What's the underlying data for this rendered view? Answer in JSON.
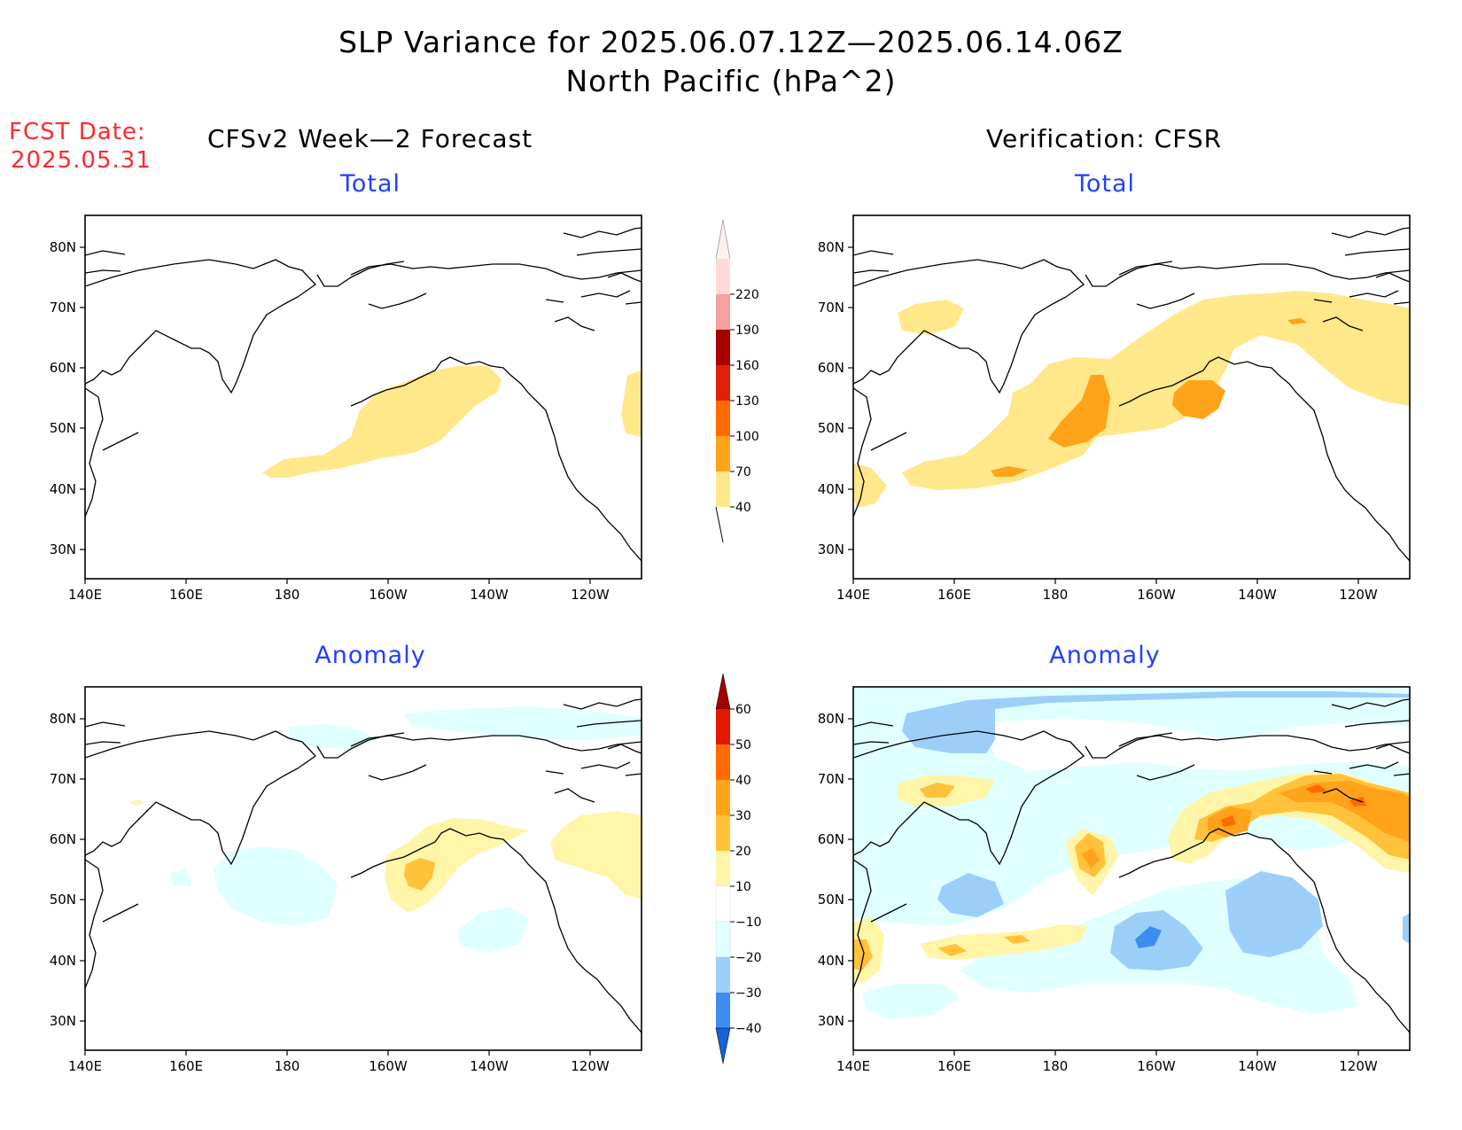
{
  "title": "SLP Variance for 2025.06.07.12Z—2025.06.14.06Z",
  "subtitle": "North Pacific (hPa^2)",
  "fcst_label": "FCST Date:",
  "fcst_date": "2025.05.31",
  "left_column_title": "CFSv2 Week—2 Forecast",
  "right_column_title": "Verification: CFSR",
  "panel_titles": {
    "top_left": "Total",
    "top_right": "Total",
    "bottom_left": "Anomaly",
    "bottom_right": "Anomaly"
  },
  "axes": {
    "lon_labels": [
      "140E",
      "160E",
      "180",
      "160W",
      "140W",
      "120W"
    ],
    "lat_labels": [
      "80N",
      "70N",
      "60N",
      "50N",
      "40N",
      "30N"
    ]
  },
  "colorbar_total": {
    "labels": [
      "40",
      "70",
      "100",
      "130",
      "160",
      "190",
      "220"
    ],
    "colors": [
      "#ffe88a",
      "#ffa31a",
      "#ff6a00",
      "#e0200a",
      "#a80000",
      "#f4a0a0",
      "#ffd8d8"
    ]
  },
  "colorbar_anomaly": {
    "labels": [
      "60",
      "50",
      "40",
      "30",
      "20",
      "10",
      "−10",
      "−20",
      "−30",
      "−40"
    ],
    "colors_top_to_bottom": [
      "#a50000",
      "#e21800",
      "#ff6a00",
      "#ffa31a",
      "#ffc23a",
      "#fff5a8",
      "#ffffff",
      "#e0ffff",
      "#9ccff8",
      "#3d8cf0",
      "#1464d8"
    ]
  },
  "palette": {
    "t40": "#ffe88a",
    "t70": "#ffa31a",
    "t100": "#ff6a00",
    "a10": "#fff5a8",
    "a20": "#ffc23a",
    "a30": "#ffa31a",
    "a40": "#ff6a00",
    "an10": "#e0ffff",
    "an20": "#9ccff8",
    "an30": "#3d8cf0"
  }
}
